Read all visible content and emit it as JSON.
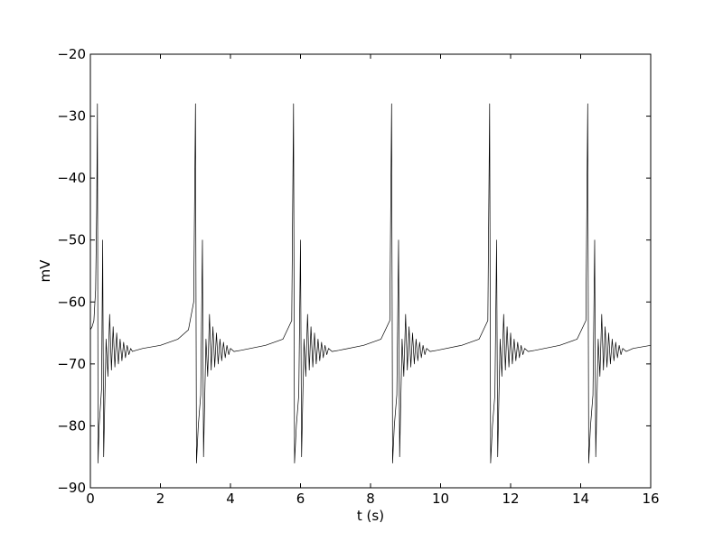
{
  "chart_data": {
    "type": "line",
    "title": "",
    "xlabel": "t (s)",
    "ylabel": "mV",
    "xlim": [
      0,
      16
    ],
    "ylim": [
      -90,
      -20
    ],
    "xticks": [
      0,
      2,
      4,
      6,
      8,
      10,
      12,
      14,
      16
    ],
    "yticks": [
      -90,
      -80,
      -70,
      -60,
      -50,
      -40,
      -30,
      -20
    ],
    "xtick_labels": [
      "0",
      "2",
      "4",
      "6",
      "8",
      "10",
      "12",
      "14",
      "16"
    ],
    "ytick_labels": [
      "−90",
      "−80",
      "−70",
      "−60",
      "−50",
      "−40",
      "−30",
      "−20"
    ],
    "grid": false,
    "legend": "none",
    "line_color": "#000000",
    "series": [
      {
        "x": [
          0,
          0.05,
          0.1,
          0.15,
          0.18,
          0.2,
          0.22,
          0.25,
          0.32,
          0.35,
          0.38,
          0.45,
          0.5,
          0.55,
          0.6,
          0.65,
          0.7,
          0.75,
          0.8,
          0.85,
          0.9,
          0.95,
          1.0,
          1.05,
          1.1,
          1.15,
          1.2,
          1.3,
          1.5,
          2.0,
          2.5,
          2.8,
          2.95,
          3.0,
          3.03,
          3.08,
          3.15,
          3.2,
          3.23,
          3.3,
          3.35,
          3.4,
          3.45,
          3.5,
          3.55,
          3.6,
          3.65,
          3.7,
          3.75,
          3.8,
          3.85,
          3.9,
          3.95,
          4.0,
          4.1,
          4.3,
          5.0,
          5.5,
          5.75,
          5.8,
          5.83,
          5.88,
          5.95,
          6.0,
          6.03,
          6.1,
          6.15,
          6.2,
          6.25,
          6.3,
          6.35,
          6.4,
          6.45,
          6.5,
          6.55,
          6.6,
          6.65,
          6.7,
          6.75,
          6.8,
          6.9,
          7.1,
          7.8,
          8.3,
          8.55,
          8.6,
          8.63,
          8.68,
          8.75,
          8.8,
          8.83,
          8.9,
          8.95,
          9.0,
          9.05,
          9.1,
          9.15,
          9.2,
          9.25,
          9.3,
          9.35,
          9.4,
          9.45,
          9.5,
          9.55,
          9.6,
          9.7,
          9.9,
          10.6,
          11.1,
          11.35,
          11.4,
          11.43,
          11.48,
          11.55,
          11.6,
          11.63,
          11.7,
          11.75,
          11.8,
          11.85,
          11.9,
          11.95,
          12.0,
          12.05,
          12.1,
          12.15,
          12.2,
          12.25,
          12.3,
          12.35,
          12.4,
          12.5,
          12.7,
          13.4,
          13.9,
          14.15,
          14.2,
          14.23,
          14.28,
          14.35,
          14.4,
          14.43,
          14.5,
          14.55,
          14.6,
          14.65,
          14.7,
          14.75,
          14.8,
          14.85,
          14.9,
          14.95,
          15.0,
          15.05,
          15.1,
          15.15,
          15.2,
          15.3,
          15.5,
          16.0
        ],
        "y": [
          -64.5,
          -64,
          -63,
          -58,
          -45,
          -28,
          -86,
          -80,
          -74,
          -50,
          -85,
          -66,
          -72,
          -62,
          -71,
          -64,
          -70.5,
          -65,
          -70,
          -66,
          -69.5,
          -66.5,
          -69,
          -67,
          -68.5,
          -67.5,
          -68,
          -67.8,
          -67.5,
          -67,
          -66,
          -64.5,
          -60,
          -28,
          -86,
          -80,
          -75,
          -50,
          -85,
          -66,
          -72,
          -62,
          -71,
          -64,
          -70.5,
          -65,
          -70,
          -66,
          -69.5,
          -66.5,
          -69,
          -67,
          -68.5,
          -67.5,
          -68,
          -67.8,
          -67,
          -66,
          -63,
          -28,
          -86,
          -80,
          -75,
          -50,
          -85,
          -66,
          -72,
          -62,
          -71,
          -64,
          -70.5,
          -65,
          -70,
          -66,
          -69.5,
          -66.5,
          -69,
          -67,
          -68.5,
          -67.5,
          -68,
          -67.8,
          -67,
          -66,
          -63,
          -28,
          -86,
          -80,
          -75,
          -50,
          -85,
          -66,
          -72,
          -62,
          -71,
          -64,
          -70.5,
          -65,
          -70,
          -66,
          -69.5,
          -66.5,
          -69,
          -67,
          -68.5,
          -67.5,
          -68,
          -67.8,
          -67,
          -66,
          -63,
          -28,
          -86,
          -80,
          -75,
          -50,
          -85,
          -66,
          -72,
          -62,
          -71,
          -64,
          -70.5,
          -65,
          -70,
          -66,
          -69.5,
          -66.5,
          -69,
          -67,
          -68.5,
          -67.5,
          -68,
          -67.8,
          -67,
          -66,
          -63,
          -28,
          -86,
          -80,
          -75,
          -50,
          -85,
          -66,
          -72,
          -62,
          -71,
          -64,
          -70.5,
          -65,
          -70,
          -66,
          -69.5,
          -66.5,
          -69,
          -67,
          -68.5,
          -67.5,
          -68,
          -67.5,
          -67
        ]
      }
    ]
  }
}
